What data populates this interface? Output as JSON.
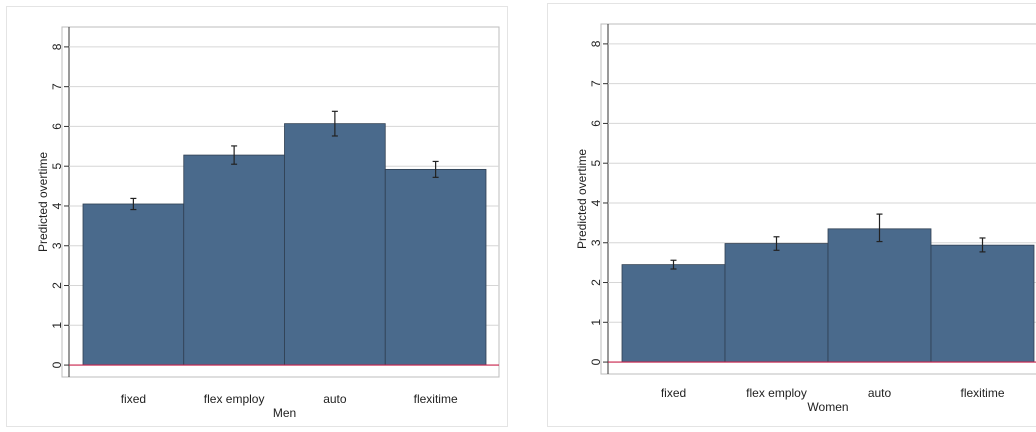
{
  "chart_data": [
    {
      "type": "bar",
      "title": "",
      "xlabel": "Men",
      "ylabel": "Predicted overtime",
      "categories": [
        "fixed",
        "flex employ",
        "auto",
        "flexitime"
      ],
      "values": [
        4.05,
        5.28,
        6.07,
        4.92
      ],
      "error_bars": {
        "lower": [
          3.91,
          5.05,
          5.76,
          4.72
        ],
        "upper": [
          4.19,
          5.51,
          6.38,
          5.12
        ]
      },
      "ylim": [
        -0.3,
        8.5
      ],
      "yticks": [
        0,
        1,
        2,
        3,
        4,
        5,
        6,
        7,
        8
      ],
      "grid": true,
      "baseline": 0,
      "colors": {
        "bar": "#4a6a8c",
        "bar_edge": "#2f3f52",
        "grid": "#d6d6d6",
        "baseline": "#c8204a",
        "error": "#222222"
      }
    },
    {
      "type": "bar",
      "title": "",
      "xlabel": "Women",
      "ylabel": "Predicted overtime",
      "categories": [
        "fixed",
        "flex employ",
        "auto",
        "flexitime"
      ],
      "values": [
        2.45,
        2.98,
        3.35,
        2.94
      ],
      "error_bars": {
        "lower": [
          2.34,
          2.81,
          3.03,
          2.77
        ],
        "upper": [
          2.56,
          3.15,
          3.72,
          3.12
        ]
      },
      "ylim": [
        -0.3,
        8.5
      ],
      "yticks": [
        0,
        1,
        2,
        3,
        4,
        5,
        6,
        7,
        8
      ],
      "grid": true,
      "baseline": 0,
      "colors": {
        "bar": "#4a6a8c",
        "bar_edge": "#2f3f52",
        "grid": "#d6d6d6",
        "baseline": "#c8204a",
        "error": "#222222"
      }
    }
  ]
}
